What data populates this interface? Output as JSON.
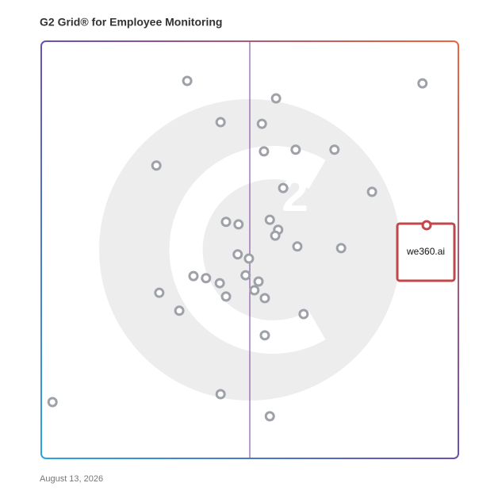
{
  "chart_data": {
    "type": "scatter",
    "title": "G2 Grid® for Employee Monitoring",
    "date": "August 13, 2026",
    "xlim": [
      0,
      100
    ],
    "ylim": [
      0,
      100
    ],
    "series": [
      {
        "color": "#9ea2a8",
        "x": [
          35.0,
          91.4,
          56.3,
          43.0,
          52.9,
          53.4,
          61.0,
          70.3,
          27.6,
          58.0,
          79.3,
          44.3,
          47.3,
          54.8,
          56.8,
          56.1,
          61.4,
          71.9,
          47.1,
          49.8,
          36.5,
          39.5,
          42.8,
          49.0,
          52.1,
          51.1,
          28.3,
          44.3,
          53.6,
          33.1,
          62.9,
          53.6,
          2.7,
          43.0,
          54.8
        ],
        "values": [
          90.5,
          89.9,
          86.3,
          80.6,
          80.2,
          73.6,
          74.0,
          74.0,
          70.2,
          64.8,
          63.9,
          56.7,
          56.1,
          57.2,
          54.8,
          53.4,
          50.8,
          50.4,
          48.9,
          47.9,
          43.7,
          43.2,
          42.0,
          43.9,
          42.4,
          40.3,
          39.7,
          38.8,
          38.4,
          35.4,
          34.6,
          29.5,
          13.5,
          15.4,
          10.1
        ]
      },
      {
        "name": "we360.ai",
        "color": "#c0474a",
        "x": [
          92.4
        ],
        "values": [
          55.9
        ]
      }
    ]
  }
}
